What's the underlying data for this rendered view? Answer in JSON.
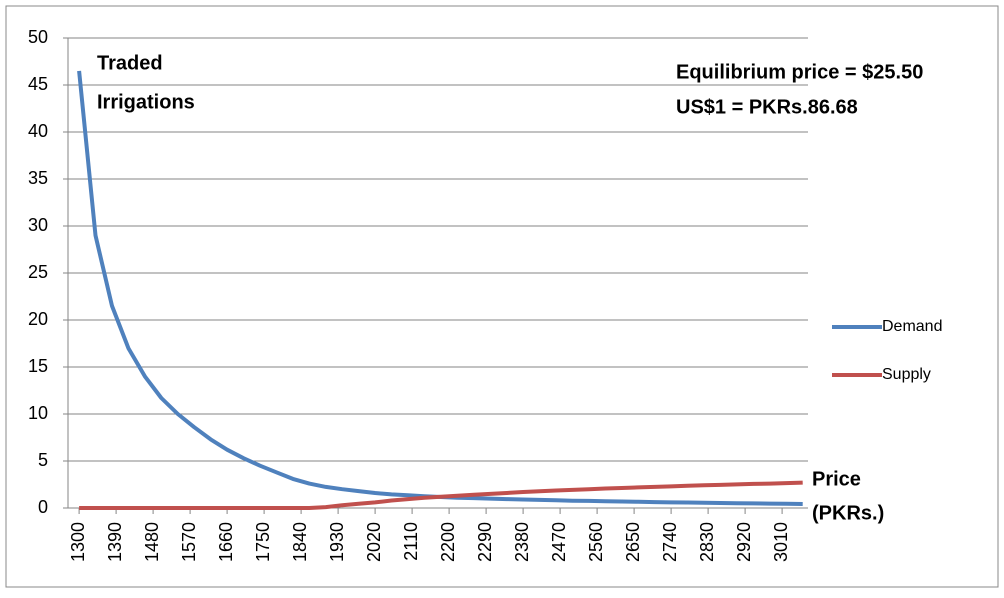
{
  "chart_data": {
    "type": "line",
    "annotations": [
      "Traded",
      "Irrigations",
      "Equilibrium price = $25.50",
      "US$1 = PKRs.86.68",
      "Price",
      "(PKRs.)"
    ],
    "x": [
      1300,
      1340,
      1380,
      1420,
      1460,
      1500,
      1540,
      1580,
      1620,
      1660,
      1700,
      1740,
      1780,
      1820,
      1860,
      1900,
      1940,
      1980,
      2020,
      2060,
      2100,
      2140,
      2180,
      2220,
      2260,
      2300,
      2340,
      2380,
      2420,
      2460,
      2500,
      2540,
      2580,
      2620,
      2660,
      2700,
      2740,
      2780,
      2820,
      2860,
      2900,
      2940,
      2980,
      3020,
      3060
    ],
    "series": [
      {
        "name": "Demand",
        "color": "#4f81bd",
        "values": [
          46.5,
          29,
          21.5,
          17,
          14,
          11.7,
          10,
          8.6,
          7.3,
          6.2,
          5.3,
          4.5,
          3.8,
          3.1,
          2.6,
          2.25,
          2.0,
          1.8,
          1.6,
          1.45,
          1.35,
          1.25,
          1.17,
          1.1,
          1.05,
          1.0,
          0.95,
          0.9,
          0.86,
          0.82,
          0.78,
          0.75,
          0.72,
          0.69,
          0.66,
          0.63,
          0.6,
          0.58,
          0.55,
          0.53,
          0.51,
          0.49,
          0.47,
          0.45,
          0.43
        ]
      },
      {
        "name": "Supply",
        "color": "#c0504d",
        "values": [
          0,
          0,
          0,
          0,
          0,
          0,
          0,
          0,
          0,
          0,
          0,
          0,
          0,
          0,
          0,
          0.1,
          0.3,
          0.45,
          0.6,
          0.8,
          0.95,
          1.1,
          1.2,
          1.3,
          1.4,
          1.5,
          1.6,
          1.7,
          1.78,
          1.86,
          1.93,
          2.0,
          2.07,
          2.13,
          2.19,
          2.25,
          2.3,
          2.36,
          2.41,
          2.46,
          2.51,
          2.56,
          2.6,
          2.65,
          2.7
        ]
      }
    ],
    "xlim": [
      1273,
      3073
    ],
    "xticks": [
      1300,
      1390,
      1480,
      1570,
      1660,
      1750,
      1840,
      1930,
      2020,
      2110,
      2200,
      2290,
      2380,
      2470,
      2560,
      2650,
      2740,
      2830,
      2920,
      3010
    ],
    "ylim": [
      0,
      50
    ],
    "yticks": [
      0,
      5,
      10,
      15,
      20,
      25,
      30,
      35,
      40,
      45,
      50
    ],
    "grid": true,
    "legend": "right"
  }
}
